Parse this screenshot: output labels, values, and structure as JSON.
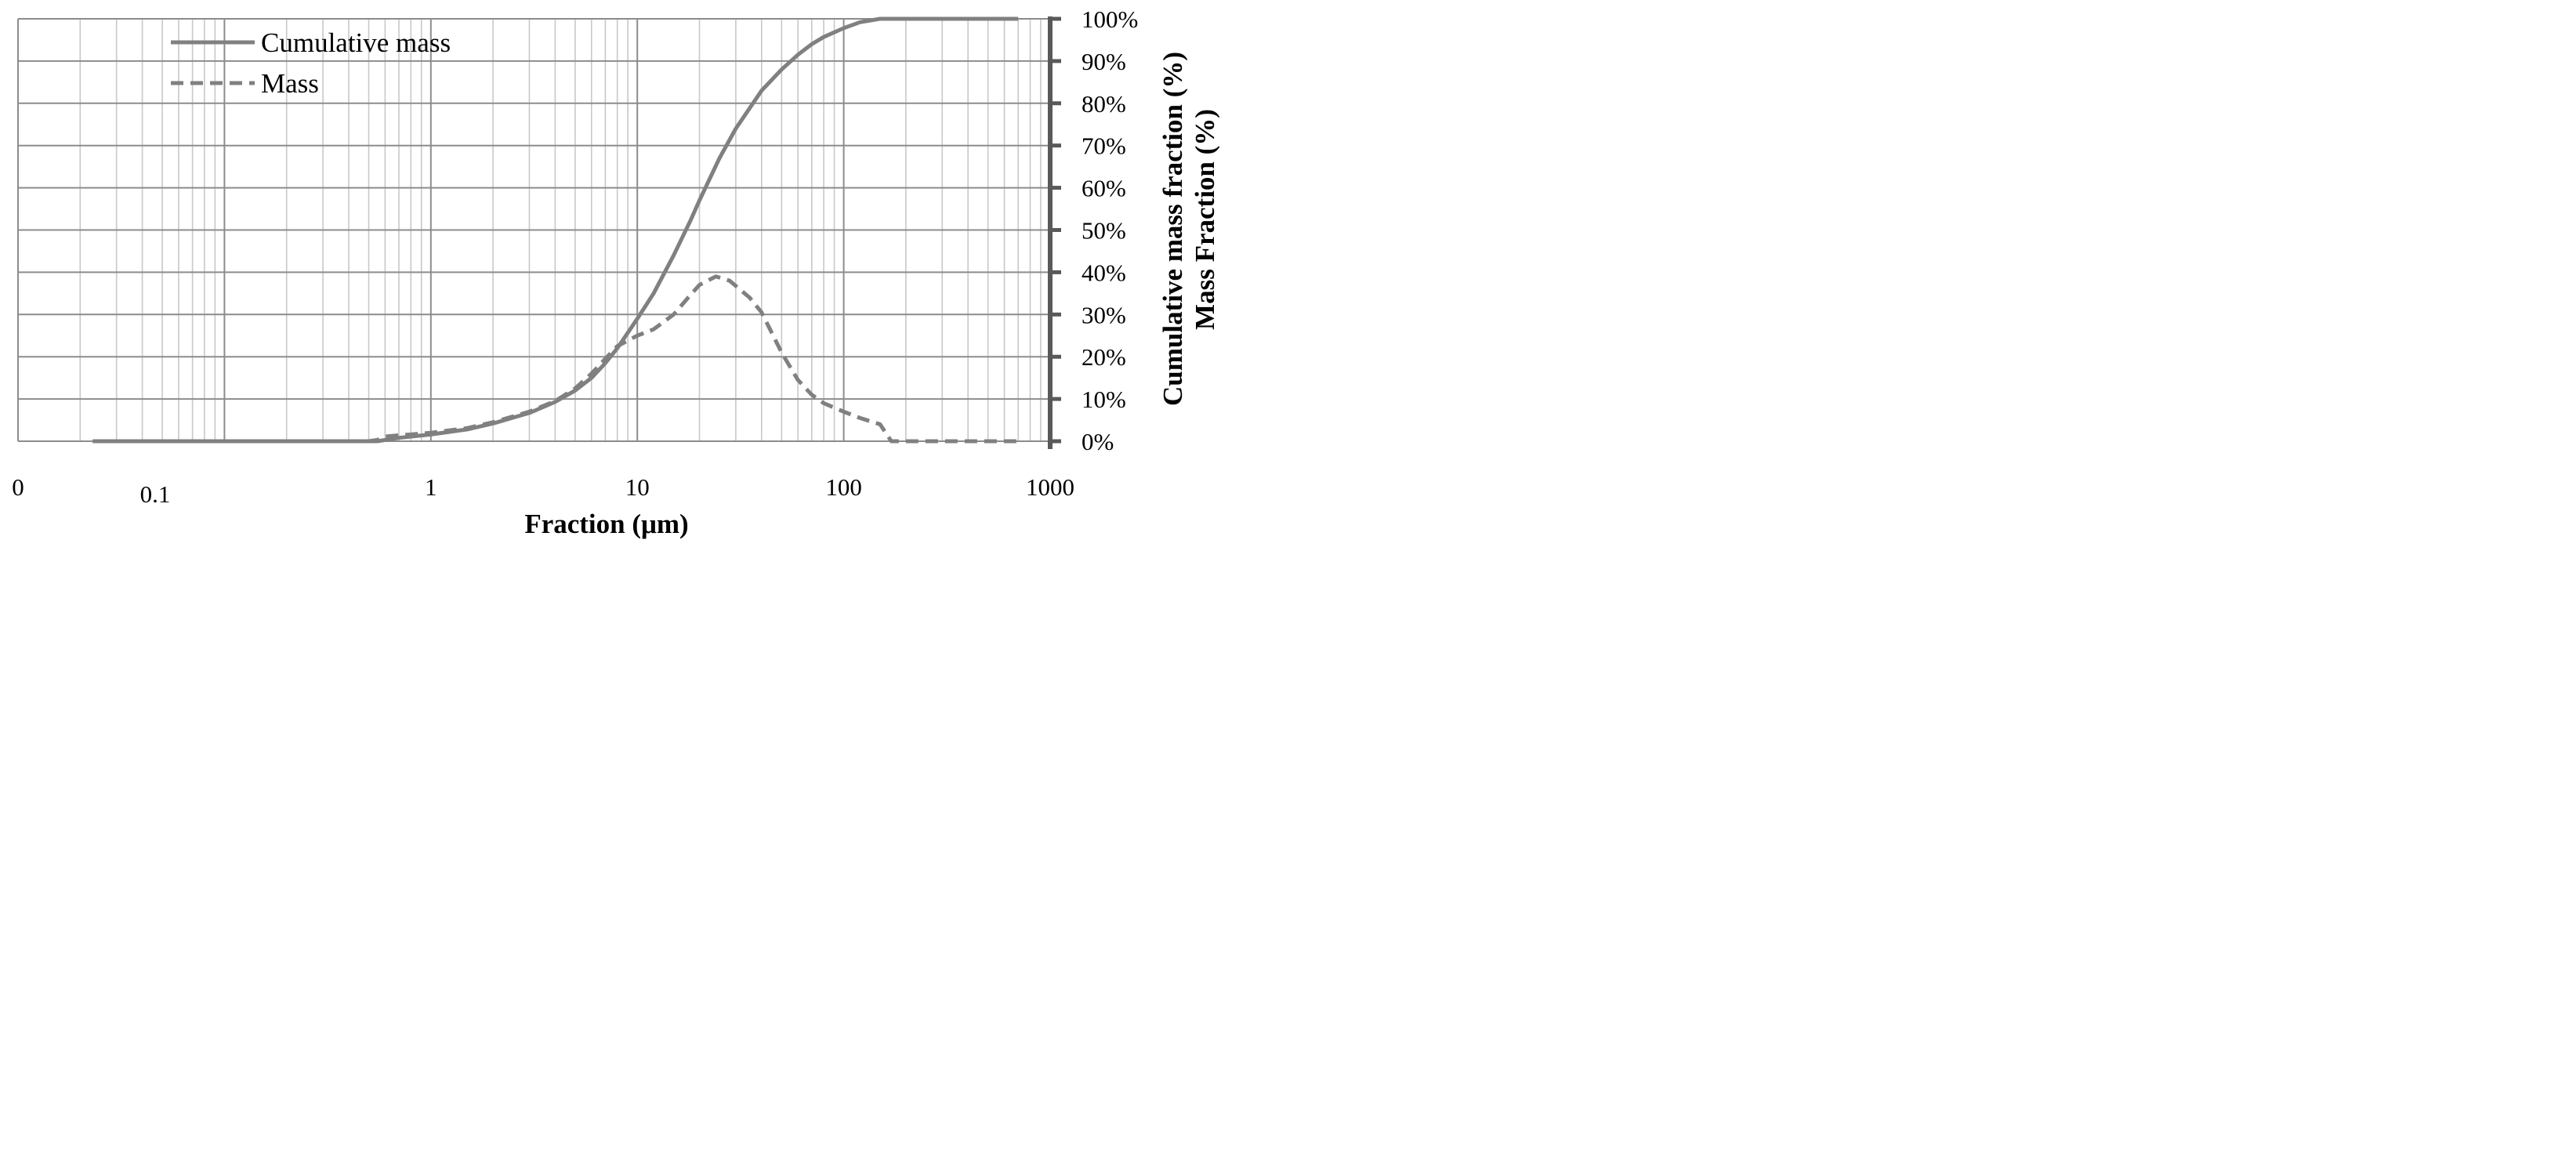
{
  "colors": {
    "line": "#808080",
    "major_grid": "#8c8c8c",
    "minor_grid": "#c8c8c8",
    "axis": "#595959",
    "background": "#ffffff"
  },
  "chart_data": {
    "type": "line",
    "title": "",
    "xlabel": "Fraction (μm)",
    "ylabel": "Cumulative mass fraction (%)",
    "ylabel2": "Mass Fraction (%)",
    "x_scale": "log",
    "xlim": [
      0.01,
      1000
    ],
    "ylim": [
      0,
      100
    ],
    "x_tick_labels": [
      {
        "value": 0.01,
        "label": "0"
      },
      {
        "value": 0.1,
        "label": "0.1"
      },
      {
        "value": 1,
        "label": "1"
      },
      {
        "value": 10,
        "label": "10"
      },
      {
        "value": 100,
        "label": "100"
      },
      {
        "value": 1000,
        "label": "1000"
      }
    ],
    "y_ticks": [
      0,
      10,
      20,
      30,
      40,
      50,
      60,
      70,
      80,
      90,
      100
    ],
    "y_tick_labels": [
      "0%",
      "10%",
      "20%",
      "30%",
      "40%",
      "50%",
      "60%",
      "70%",
      "80%",
      "90%",
      "100%"
    ],
    "grid": true,
    "legend_position": "top-left",
    "series": [
      {
        "name": "Cumulative mass",
        "style": "solid",
        "points": [
          [
            0.023,
            0
          ],
          [
            0.1,
            0
          ],
          [
            0.3,
            0
          ],
          [
            0.55,
            0
          ],
          [
            0.7,
            0.8
          ],
          [
            1,
            1.6
          ],
          [
            1.5,
            2.8
          ],
          [
            2,
            4.2
          ],
          [
            3,
            6.7
          ],
          [
            4,
            9.3
          ],
          [
            5,
            12
          ],
          [
            6,
            15
          ],
          [
            7,
            18.5
          ],
          [
            8,
            22
          ],
          [
            10,
            29
          ],
          [
            12,
            35
          ],
          [
            15,
            44
          ],
          [
            18,
            52
          ],
          [
            20,
            57
          ],
          [
            25,
            67
          ],
          [
            30,
            74
          ],
          [
            40,
            83
          ],
          [
            50,
            88
          ],
          [
            60,
            91.5
          ],
          [
            70,
            94
          ],
          [
            80,
            95.7
          ],
          [
            100,
            97.8
          ],
          [
            120,
            99.2
          ],
          [
            150,
            100
          ],
          [
            700,
            100
          ]
        ]
      },
      {
        "name": "Mass",
        "style": "dashed",
        "points": [
          [
            0.023,
            0
          ],
          [
            0.5,
            0
          ],
          [
            0.55,
            0.3
          ],
          [
            0.6,
            1.1
          ],
          [
            0.7,
            1.4
          ],
          [
            0.8,
            1.6
          ],
          [
            1,
            2
          ],
          [
            1.5,
            3.1
          ],
          [
            2,
            4.5
          ],
          [
            3,
            7
          ],
          [
            4,
            9.5
          ],
          [
            5,
            12.5
          ],
          [
            6,
            16
          ],
          [
            7,
            19.5
          ],
          [
            8,
            22.5
          ],
          [
            10,
            25
          ],
          [
            12,
            26.5
          ],
          [
            15,
            30
          ],
          [
            18,
            34.5
          ],
          [
            20,
            37
          ],
          [
            24,
            39
          ],
          [
            28,
            38
          ],
          [
            35,
            34
          ],
          [
            40,
            30.5
          ],
          [
            50,
            21
          ],
          [
            60,
            14.5
          ],
          [
            70,
            11
          ],
          [
            80,
            9
          ],
          [
            100,
            7
          ],
          [
            120,
            5.5
          ],
          [
            150,
            4
          ],
          [
            170,
            0
          ],
          [
            200,
            0
          ],
          [
            700,
            0
          ]
        ]
      }
    ]
  }
}
